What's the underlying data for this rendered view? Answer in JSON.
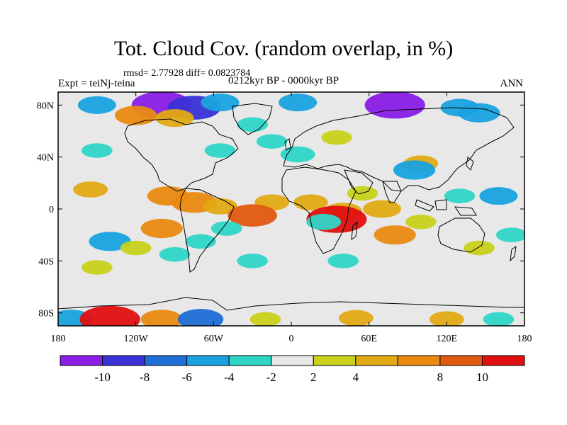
{
  "chart_data": {
    "type": "heatmap",
    "title": "Tot. Cloud Cov. (random overlap, in %)",
    "stats": "rmsd= 2.77928 diff= 0.0823784",
    "left_label": "Expt = teiNj-teina",
    "center_label": "0212kyr BP - 0000kyr BP",
    "right_label": "ANN",
    "x_ticks": [
      {
        "value": -180,
        "label": "180"
      },
      {
        "value": -120,
        "label": "120W"
      },
      {
        "value": -60,
        "label": "60W"
      },
      {
        "value": 0,
        "label": "0"
      },
      {
        "value": 60,
        "label": "60E"
      },
      {
        "value": 120,
        "label": "120E"
      },
      {
        "value": 180,
        "label": "180"
      }
    ],
    "y_ticks": [
      {
        "value": 80,
        "label": "80N"
      },
      {
        "value": 40,
        "label": "40N"
      },
      {
        "value": 0,
        "label": "0"
      },
      {
        "value": -40,
        "label": "40S"
      },
      {
        "value": -80,
        "label": "80S"
      }
    ],
    "xlim": [
      -180,
      180
    ],
    "ylim": [
      -90,
      90
    ],
    "background_color": "#e8e8e8",
    "colorbar": {
      "levels": [
        -12,
        -10,
        -8,
        -6,
        -4,
        -2,
        2,
        4,
        6,
        8,
        10,
        12
      ],
      "labels": [
        "-10",
        "-8",
        "-6",
        "-4",
        "-2",
        "2",
        "4",
        "8",
        "10"
      ],
      "colors": [
        "#8a1ee6",
        "#3a32d6",
        "#1f6ed6",
        "#19a2e0",
        "#2fd6c8",
        "#e8e8e8",
        "#c8d21a",
        "#e2aa14",
        "#ea8a10",
        "#e05a10",
        "#e01010"
      ]
    },
    "anomalies": [
      {
        "lon": -150,
        "lat": 80,
        "value": -5
      },
      {
        "lon": -100,
        "lat": 80,
        "value": -11
      },
      {
        "lon": -75,
        "lat": 78,
        "value": -9
      },
      {
        "lon": -55,
        "lat": 82,
        "value": -5
      },
      {
        "lon": -120,
        "lat": 72,
        "value": 6
      },
      {
        "lon": -90,
        "lat": 70,
        "value": 5
      },
      {
        "lon": 5,
        "lat": 82,
        "value": -5
      },
      {
        "lon": 80,
        "lat": 80,
        "value": -11
      },
      {
        "lon": 130,
        "lat": 78,
        "value": -5
      },
      {
        "lon": 145,
        "lat": 74,
        "value": -6
      },
      {
        "lon": -30,
        "lat": 65,
        "value": -3
      },
      {
        "lon": -150,
        "lat": 45,
        "value": -3
      },
      {
        "lon": -55,
        "lat": 45,
        "value": -3
      },
      {
        "lon": -15,
        "lat": 52,
        "value": -3
      },
      {
        "lon": 5,
        "lat": 42,
        "value": -4
      },
      {
        "lon": 35,
        "lat": 55,
        "value": 3
      },
      {
        "lon": 100,
        "lat": 35,
        "value": 4
      },
      {
        "lon": 95,
        "lat": 30,
        "value": -6
      },
      {
        "lon": -155,
        "lat": 15,
        "value": 4
      },
      {
        "lon": 160,
        "lat": 10,
        "value": -5
      },
      {
        "lon": 130,
        "lat": 10,
        "value": -3
      },
      {
        "lon": -95,
        "lat": 10,
        "value": 6
      },
      {
        "lon": -75,
        "lat": 5,
        "value": 7
      },
      {
        "lon": -55,
        "lat": 2,
        "value": 4
      },
      {
        "lon": -15,
        "lat": 5,
        "value": 4
      },
      {
        "lon": 15,
        "lat": 5,
        "value": 4
      },
      {
        "lon": 55,
        "lat": 12,
        "value": 3
      },
      {
        "lon": 70,
        "lat": 0,
        "value": 5
      },
      {
        "lon": 40,
        "lat": -2,
        "value": 5
      },
      {
        "lon": 35,
        "lat": -8,
        "value": 11
      },
      {
        "lon": 25,
        "lat": -10,
        "value": -4
      },
      {
        "lon": -30,
        "lat": -5,
        "value": 8
      },
      {
        "lon": -50,
        "lat": -15,
        "value": -3
      },
      {
        "lon": -70,
        "lat": -25,
        "value": -3
      },
      {
        "lon": -100,
        "lat": -15,
        "value": 6
      },
      {
        "lon": -140,
        "lat": -25,
        "value": -6
      },
      {
        "lon": -120,
        "lat": -30,
        "value": 3
      },
      {
        "lon": -90,
        "lat": -35,
        "value": -3
      },
      {
        "lon": 80,
        "lat": -20,
        "value": 6
      },
      {
        "lon": 100,
        "lat": -10,
        "value": 3
      },
      {
        "lon": 145,
        "lat": -30,
        "value": 3
      },
      {
        "lon": 170,
        "lat": -20,
        "value": -3
      },
      {
        "lon": -30,
        "lat": -40,
        "value": -3
      },
      {
        "lon": 40,
        "lat": -40,
        "value": -3
      },
      {
        "lon": -150,
        "lat": -45,
        "value": 3
      },
      {
        "lon": -170,
        "lat": -85,
        "value": -6
      },
      {
        "lon": -140,
        "lat": -85,
        "value": 11
      },
      {
        "lon": -100,
        "lat": -85,
        "value": 6
      },
      {
        "lon": -70,
        "lat": -85,
        "value": -7
      },
      {
        "lon": -20,
        "lat": -85,
        "value": 3
      },
      {
        "lon": 50,
        "lat": -84,
        "value": 4
      },
      {
        "lon": 120,
        "lat": -85,
        "value": 4
      },
      {
        "lon": 160,
        "lat": -85,
        "value": -3
      }
    ]
  }
}
